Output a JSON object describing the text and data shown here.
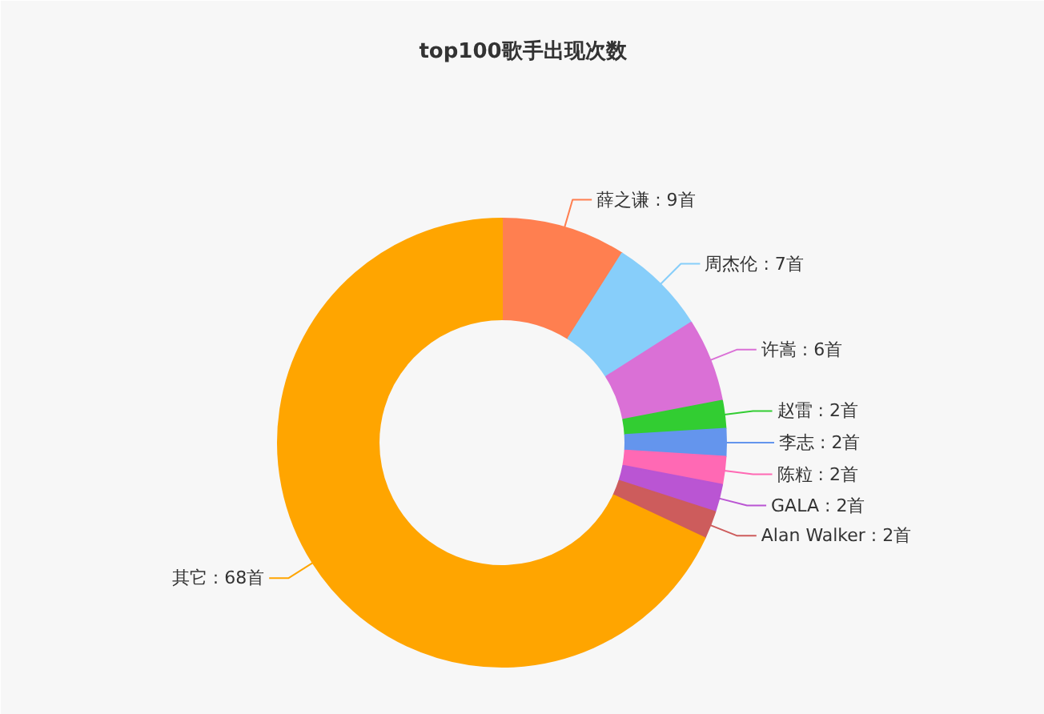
{
  "chart_data": {
    "type": "donut",
    "title": "top100歌手出现次数",
    "categories": [
      "薛之谦",
      "周杰伦",
      "许嵩",
      "赵雷",
      "李志",
      "陈粒",
      "GALA",
      "Alan Walker",
      "其它"
    ],
    "values": [
      9,
      7,
      6,
      2,
      2,
      2,
      2,
      2,
      68
    ],
    "colors": [
      "#ff7f50",
      "#87cefa",
      "#da70d6",
      "#32cd32",
      "#6495ed",
      "#ff69b4",
      "#ba55d3",
      "#cd5c5c",
      "#ffa500"
    ],
    "value_labels": [
      "9首",
      "7首",
      "6首",
      "2首",
      "2首",
      "2首",
      "2首",
      "2首",
      "68首"
    ]
  }
}
